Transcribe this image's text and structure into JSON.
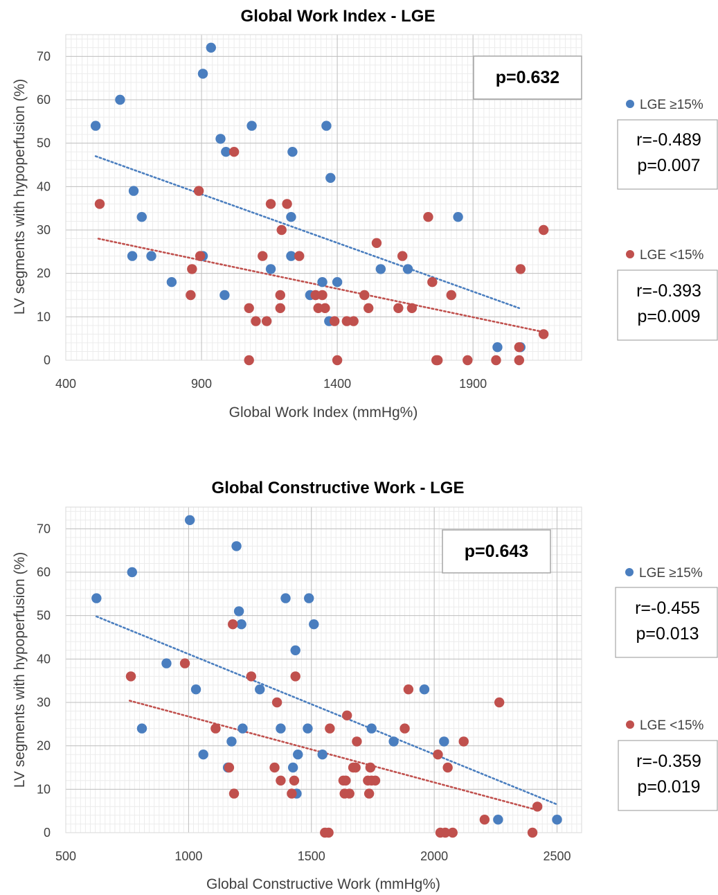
{
  "chart_data": [
    {
      "type": "scatter",
      "title": "Global Work Index - LGE",
      "xlabel": "Global Work Index (mmHg%)",
      "ylabel": "LV segments with hypoperfusion (%)",
      "xlim": [
        400,
        2300
      ],
      "ylim": [
        0,
        75
      ],
      "xticks": [
        "400",
        "900",
        "1400",
        "1900"
      ],
      "yticks": [
        "0",
        "10",
        "20",
        "30",
        "40",
        "50",
        "60",
        "70"
      ],
      "grid": true,
      "pvalue_box": "p=0.632",
      "legend_placement": "right",
      "series": [
        {
          "name": "LGE ≥15%",
          "color": "#4a7ebf",
          "stats": [
            "r=-0.489",
            "p=0.007"
          ],
          "trend": {
            "x": [
              510,
              2070
            ],
            "y": [
              47,
              12
            ]
          },
          "points": [
            {
              "x": 510,
              "y": 54
            },
            {
              "x": 600,
              "y": 60
            },
            {
              "x": 650,
              "y": 39
            },
            {
              "x": 680,
              "y": 33
            },
            {
              "x": 645,
              "y": 24
            },
            {
              "x": 715,
              "y": 24
            },
            {
              "x": 790,
              "y": 18
            },
            {
              "x": 935,
              "y": 72
            },
            {
              "x": 905,
              "y": 66
            },
            {
              "x": 970,
              "y": 51
            },
            {
              "x": 990,
              "y": 48
            },
            {
              "x": 1085,
              "y": 54
            },
            {
              "x": 1235,
              "y": 48
            },
            {
              "x": 1360,
              "y": 54
            },
            {
              "x": 1375,
              "y": 42
            },
            {
              "x": 1230,
              "y": 33
            },
            {
              "x": 905,
              "y": 24
            },
            {
              "x": 985,
              "y": 15
            },
            {
              "x": 1155,
              "y": 21
            },
            {
              "x": 1230,
              "y": 24
            },
            {
              "x": 1300,
              "y": 15
            },
            {
              "x": 1345,
              "y": 18
            },
            {
              "x": 1400,
              "y": 18
            },
            {
              "x": 1370,
              "y": 9
            },
            {
              "x": 1560,
              "y": 21
            },
            {
              "x": 1660,
              "y": 21
            },
            {
              "x": 1845,
              "y": 33
            },
            {
              "x": 1990,
              "y": 3
            },
            {
              "x": 2075,
              "y": 3
            }
          ]
        },
        {
          "name": "LGE <15%",
          "color": "#c0504d",
          "stats": [
            "r=-0.393",
            "p=0.009"
          ],
          "trend": {
            "x": [
              520,
              2160
            ],
            "y": [
              28,
              6.5
            ]
          },
          "points": [
            {
              "x": 525,
              "y": 36
            },
            {
              "x": 890,
              "y": 39
            },
            {
              "x": 1020,
              "y": 48
            },
            {
              "x": 1155,
              "y": 36
            },
            {
              "x": 1215,
              "y": 36
            },
            {
              "x": 1195,
              "y": 30
            },
            {
              "x": 865,
              "y": 21
            },
            {
              "x": 895,
              "y": 24
            },
            {
              "x": 860,
              "y": 15
            },
            {
              "x": 1125,
              "y": 24
            },
            {
              "x": 1260,
              "y": 24
            },
            {
              "x": 1075,
              "y": 12
            },
            {
              "x": 1100,
              "y": 9
            },
            {
              "x": 1140,
              "y": 9
            },
            {
              "x": 1190,
              "y": 15
            },
            {
              "x": 1190,
              "y": 12
            },
            {
              "x": 1320,
              "y": 15
            },
            {
              "x": 1345,
              "y": 15
            },
            {
              "x": 1330,
              "y": 12
            },
            {
              "x": 1355,
              "y": 12
            },
            {
              "x": 1390,
              "y": 9
            },
            {
              "x": 1435,
              "y": 9
            },
            {
              "x": 1460,
              "y": 9
            },
            {
              "x": 1500,
              "y": 15
            },
            {
              "x": 1515,
              "y": 12
            },
            {
              "x": 1545,
              "y": 27
            },
            {
              "x": 1625,
              "y": 12
            },
            {
              "x": 1640,
              "y": 24
            },
            {
              "x": 1675,
              "y": 12
            },
            {
              "x": 1735,
              "y": 33
            },
            {
              "x": 1750,
              "y": 18
            },
            {
              "x": 1820,
              "y": 15
            },
            {
              "x": 1765,
              "y": 0
            },
            {
              "x": 1770,
              "y": 0
            },
            {
              "x": 1880,
              "y": 0
            },
            {
              "x": 1985,
              "y": 0
            },
            {
              "x": 2070,
              "y": 0
            },
            {
              "x": 2070,
              "y": 3
            },
            {
              "x": 2075,
              "y": 21
            },
            {
              "x": 2160,
              "y": 30
            },
            {
              "x": 2160,
              "y": 6
            },
            {
              "x": 1075,
              "y": 0
            },
            {
              "x": 1400,
              "y": 0
            }
          ]
        }
      ]
    },
    {
      "type": "scatter",
      "title": "Global Constructive Work - LGE",
      "xlabel": "Global Constructive Work (mmHg%)",
      "ylabel": "LV segments with hypoperfusion (%)",
      "xlim": [
        500,
        2600
      ],
      "ylim": [
        0,
        75
      ],
      "xticks": [
        "500",
        "1000",
        "1500",
        "2000",
        "2500"
      ],
      "yticks": [
        "0",
        "10",
        "20",
        "30",
        "40",
        "50",
        "60",
        "70"
      ],
      "grid": true,
      "pvalue_box": "p=0.643",
      "legend_placement": "right",
      "series": [
        {
          "name": "LGE ≥15%",
          "color": "#4a7ebf",
          "stats": [
            "r=-0.455",
            "p=0.013"
          ],
          "trend": {
            "x": [
              625,
              2500
            ],
            "y": [
              49.8,
              6.5
            ]
          },
          "points": [
            {
              "x": 625,
              "y": 54
            },
            {
              "x": 770,
              "y": 60
            },
            {
              "x": 1005,
              "y": 72
            },
            {
              "x": 1195,
              "y": 66
            },
            {
              "x": 1205,
              "y": 51
            },
            {
              "x": 1215,
              "y": 48
            },
            {
              "x": 910,
              "y": 39
            },
            {
              "x": 1030,
              "y": 33
            },
            {
              "x": 810,
              "y": 24
            },
            {
              "x": 1060,
              "y": 18
            },
            {
              "x": 1175,
              "y": 21
            },
            {
              "x": 1160,
              "y": 15
            },
            {
              "x": 1220,
              "y": 24
            },
            {
              "x": 1290,
              "y": 33
            },
            {
              "x": 1375,
              "y": 24
            },
            {
              "x": 1395,
              "y": 54
            },
            {
              "x": 1490,
              "y": 54
            },
            {
              "x": 1510,
              "y": 48
            },
            {
              "x": 1435,
              "y": 42
            },
            {
              "x": 1485,
              "y": 24
            },
            {
              "x": 1445,
              "y": 18
            },
            {
              "x": 1425,
              "y": 15
            },
            {
              "x": 1440,
              "y": 9
            },
            {
              "x": 1545,
              "y": 18
            },
            {
              "x": 1745,
              "y": 24
            },
            {
              "x": 1835,
              "y": 21
            },
            {
              "x": 1960,
              "y": 33
            },
            {
              "x": 2040,
              "y": 21
            },
            {
              "x": 2260,
              "y": 3
            },
            {
              "x": 2500,
              "y": 3
            }
          ]
        },
        {
          "name": "LGE <15%",
          "color": "#c0504d",
          "stats": [
            "r=-0.359",
            "p=0.019"
          ],
          "trend": {
            "x": [
              760,
              2420
            ],
            "y": [
              30.4,
              5.2
            ]
          },
          "points": [
            {
              "x": 765,
              "y": 36
            },
            {
              "x": 985,
              "y": 39
            },
            {
              "x": 1180,
              "y": 48
            },
            {
              "x": 1255,
              "y": 36
            },
            {
              "x": 1435,
              "y": 36
            },
            {
              "x": 1360,
              "y": 30
            },
            {
              "x": 1110,
              "y": 24
            },
            {
              "x": 1165,
              "y": 15
            },
            {
              "x": 1185,
              "y": 9
            },
            {
              "x": 1350,
              "y": 15
            },
            {
              "x": 1375,
              "y": 12
            },
            {
              "x": 1420,
              "y": 9
            },
            {
              "x": 1430,
              "y": 12
            },
            {
              "x": 1575,
              "y": 24
            },
            {
              "x": 1645,
              "y": 27
            },
            {
              "x": 1630,
              "y": 12
            },
            {
              "x": 1640,
              "y": 12
            },
            {
              "x": 1635,
              "y": 9
            },
            {
              "x": 1655,
              "y": 9
            },
            {
              "x": 1670,
              "y": 15
            },
            {
              "x": 1680,
              "y": 15
            },
            {
              "x": 1685,
              "y": 21
            },
            {
              "x": 1730,
              "y": 12
            },
            {
              "x": 1740,
              "y": 15
            },
            {
              "x": 1745,
              "y": 12
            },
            {
              "x": 1760,
              "y": 12
            },
            {
              "x": 1735,
              "y": 9
            },
            {
              "x": 1880,
              "y": 24
            },
            {
              "x": 1895,
              "y": 33
            },
            {
              "x": 2015,
              "y": 18
            },
            {
              "x": 2055,
              "y": 15
            },
            {
              "x": 2120,
              "y": 21
            },
            {
              "x": 2205,
              "y": 3
            },
            {
              "x": 2265,
              "y": 30
            },
            {
              "x": 2420,
              "y": 6
            },
            {
              "x": 2400,
              "y": 0
            },
            {
              "x": 1555,
              "y": 0
            },
            {
              "x": 1570,
              "y": 0
            },
            {
              "x": 2025,
              "y": 0
            },
            {
              "x": 2045,
              "y": 0
            },
            {
              "x": 2075,
              "y": 0
            }
          ]
        }
      ]
    }
  ]
}
